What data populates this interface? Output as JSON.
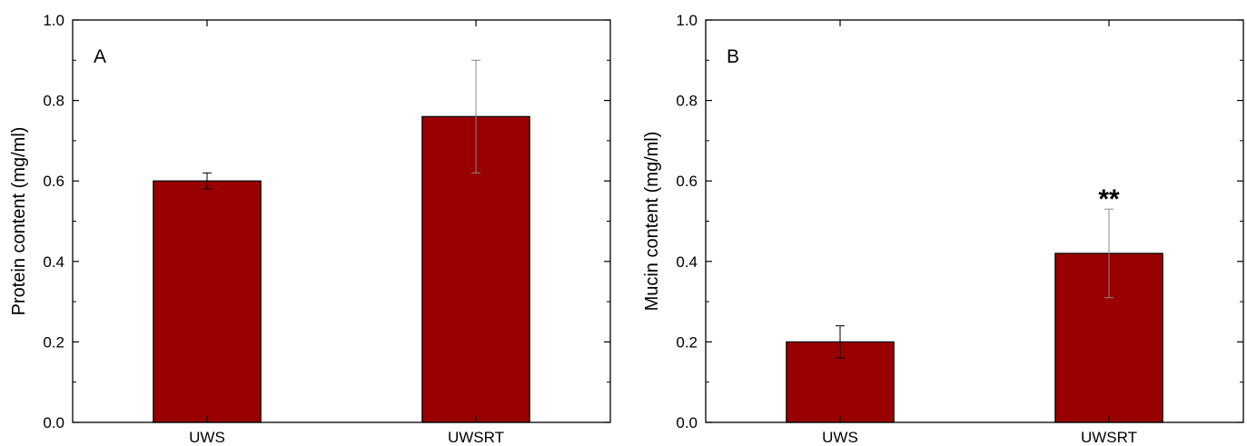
{
  "chart_data": [
    {
      "type": "bar",
      "panel_label": "A",
      "title": "",
      "xlabel": "",
      "ylabel": "Protein content (mg/ml)",
      "categories": [
        "UWS",
        "UWSRT"
      ],
      "values": [
        0.6,
        0.76
      ],
      "errors": [
        0.02,
        0.14
      ],
      "annotations": [
        "",
        ""
      ],
      "ylim": [
        0,
        1.0
      ],
      "yticks": [
        "0.0",
        "0.2",
        "0.4",
        "0.6",
        "0.8",
        "1.0"
      ],
      "bar_color": "#990000",
      "grid": false,
      "legend": "none"
    },
    {
      "type": "bar",
      "panel_label": "B",
      "title": "",
      "xlabel": "",
      "ylabel": "Mucin content (mg/ml)",
      "categories": [
        "UWS",
        "UWSRT"
      ],
      "values": [
        0.2,
        0.42
      ],
      "errors": [
        0.04,
        0.11
      ],
      "annotations": [
        "",
        "**"
      ],
      "ylim": [
        0,
        1.0
      ],
      "yticks": [
        "0.0",
        "0.2",
        "0.4",
        "0.6",
        "0.8",
        "1.0"
      ],
      "bar_color": "#990000",
      "grid": false,
      "legend": "none"
    }
  ]
}
